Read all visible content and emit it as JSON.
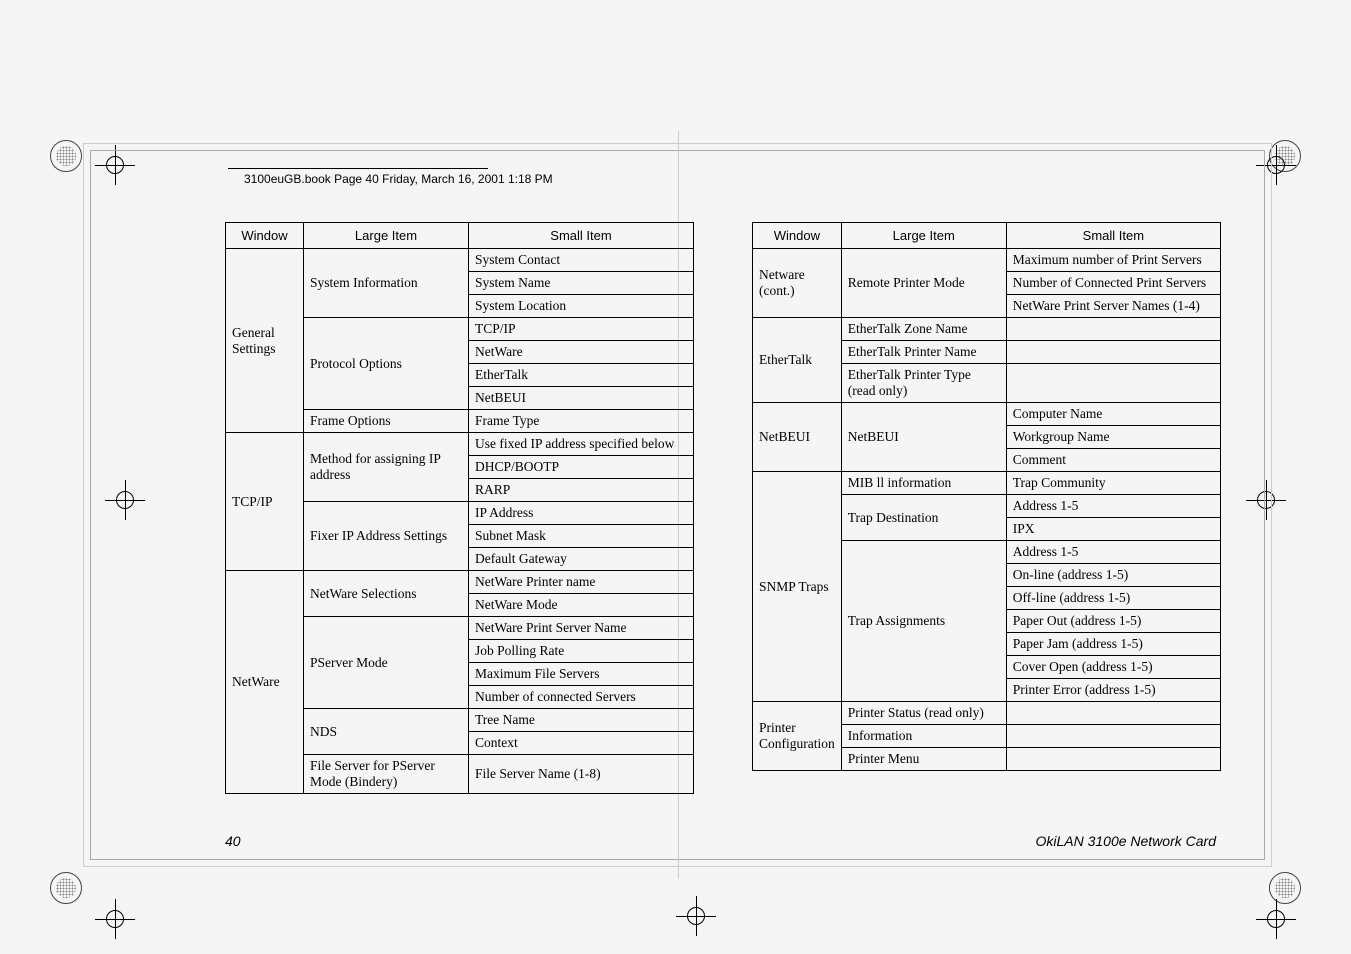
{
  "header": "3100euGB.book  Page 40  Friday, March 16, 2001  1:18 PM",
  "columns": {
    "window": "Window",
    "large": "Large Item",
    "small": "Small Item"
  },
  "leftTable": [
    {
      "window": "General Settings",
      "windowSpan": 8,
      "large": "System Information",
      "largeSpan": 3,
      "small": "System Contact"
    },
    {
      "small": "System Name"
    },
    {
      "small": "System Location"
    },
    {
      "large": "Protocol Options",
      "largeSpan": 4,
      "small": "TCP/IP"
    },
    {
      "small": "NetWare"
    },
    {
      "small": "EtherTalk"
    },
    {
      "small": "NetBEUI"
    },
    {
      "large": "Frame Options",
      "largeSpan": 1,
      "small": "Frame Type"
    },
    {
      "window": "TCP/IP",
      "windowSpan": 6,
      "large": "Method for assigning IP address",
      "largeSpan": 3,
      "small": "Use fixed IP address specified below"
    },
    {
      "small": "DHCP/BOOTP"
    },
    {
      "small": "RARP"
    },
    {
      "large": "Fixer IP Address Settings",
      "largeSpan": 3,
      "small": "IP Address"
    },
    {
      "small": "Subnet Mask"
    },
    {
      "small": "Default Gateway"
    },
    {
      "window": "NetWare",
      "windowSpan": 9,
      "large": "NetWare Selections",
      "largeSpan": 2,
      "small": "NetWare Printer name"
    },
    {
      "small": "NetWare Mode"
    },
    {
      "large": "PServer Mode",
      "largeSpan": 4,
      "small": "NetWare Print Server Name"
    },
    {
      "small": "Job Polling Rate"
    },
    {
      "small": "Maximum File Servers"
    },
    {
      "small": "Number of connected Servers"
    },
    {
      "large": "NDS",
      "largeSpan": 2,
      "small": "Tree Name"
    },
    {
      "small": "Context"
    },
    {
      "large": "File Server for PServer Mode (Bindery)",
      "largeSpan": 1,
      "small": "File Server Name (1-8)"
    }
  ],
  "rightTable": [
    {
      "window": "Netware (cont.)",
      "windowSpan": 3,
      "large": "Remote Printer Mode",
      "largeSpan": 3,
      "small": "Maximum number of Print Servers"
    },
    {
      "small": "Number of Connected Print Servers"
    },
    {
      "small": "NetWare Print Server Names (1-4)"
    },
    {
      "window": "EtherTalk",
      "windowSpan": 3,
      "large": "EtherTalk Zone Name",
      "largeSpan": 1,
      "small": ""
    },
    {
      "large": "EtherTalk Printer Name",
      "largeSpan": 1,
      "small": ""
    },
    {
      "large": "EtherTalk Printer Type (read only)",
      "largeSpan": 1,
      "small": ""
    },
    {
      "window": "NetBEUI",
      "windowSpan": 3,
      "large": "NetBEUI",
      "largeSpan": 3,
      "small": "Computer Name"
    },
    {
      "small": "Workgroup Name"
    },
    {
      "small": "Comment"
    },
    {
      "window": "SNMP Traps",
      "windowSpan": 10,
      "large": "MIB ll information",
      "largeSpan": 1,
      "small": "Trap Community"
    },
    {
      "large": "Trap Destination",
      "largeSpan": 2,
      "small": "Address 1-5"
    },
    {
      "small": "IPX"
    },
    {
      "large": "Trap Assignments",
      "largeSpan": 7,
      "small": "Address 1-5"
    },
    {
      "small": "On-line (address 1-5)"
    },
    {
      "small": "Off-line (address 1-5)"
    },
    {
      "small": "Paper Out (address 1-5)"
    },
    {
      "small": "Paper Jam (address 1-5)"
    },
    {
      "small": "Cover Open (address 1-5)"
    },
    {
      "small": "Printer Error (address 1-5)"
    },
    {
      "window": "Printer Configuration",
      "windowSpan": 3,
      "large": "Printer Status (read only)",
      "largeSpan": 1,
      "small": ""
    },
    {
      "large": "Information",
      "largeSpan": 1,
      "small": ""
    },
    {
      "large": "Printer Menu",
      "largeSpan": 1,
      "small": ""
    }
  ],
  "footer": {
    "page": "40",
    "product": "OkiLAN 3100e Network Card"
  }
}
